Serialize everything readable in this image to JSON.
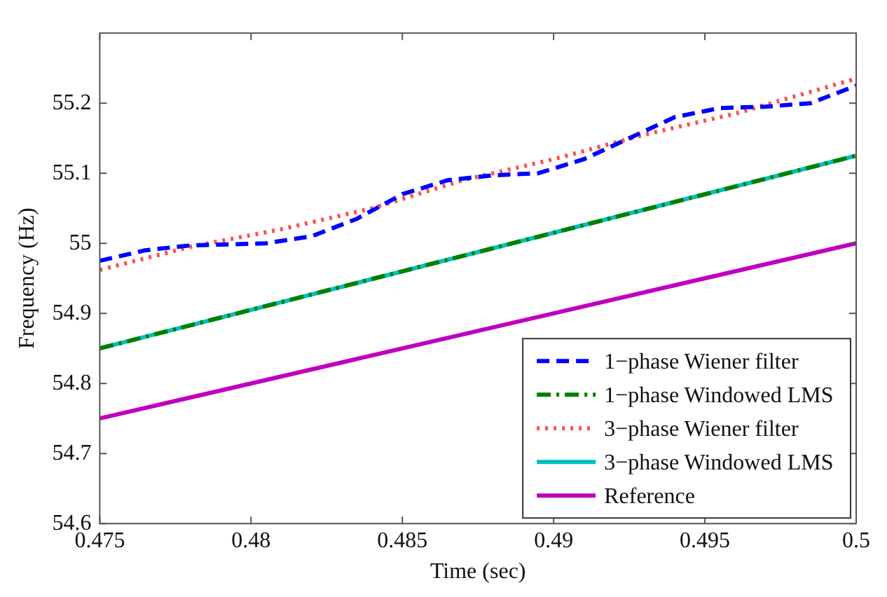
{
  "chart_data": {
    "type": "line",
    "xlabel": "Time (sec)",
    "ylabel": "Frequency (Hz)",
    "xlim": [
      0.475,
      0.5
    ],
    "xticks": [
      0.475,
      0.48,
      0.485,
      0.49,
      0.495,
      0.5
    ],
    "ylim": [
      54.6,
      55.3
    ],
    "yticks": [
      54.6,
      54.7,
      54.8,
      54.9,
      55,
      55.1,
      55.2
    ],
    "grid": false,
    "legend": "bottom right",
    "marker": "none",
    "series": [
      {
        "name": "1−phase Wiener filter",
        "color": "#0000ff",
        "line_style": "dashed",
        "x": [
          0.475,
          0.4765,
          0.478,
          0.4805,
          0.482,
          0.4835,
          0.485,
          0.4865,
          0.488,
          0.4895,
          0.491,
          0.4925,
          0.494,
          0.4955,
          0.497,
          0.4985,
          0.5
        ],
        "values": [
          54.975,
          54.99,
          54.997,
          55.0,
          55.01,
          55.035,
          55.07,
          55.09,
          55.097,
          55.1,
          55.12,
          55.15,
          55.18,
          55.193,
          55.195,
          55.2,
          55.225
        ]
      },
      {
        "name": "1−phase Windowed LMS",
        "color": "#008000",
        "line_style": "dashed",
        "x": [
          0.475,
          0.5
        ],
        "values": [
          54.85,
          55.125
        ]
      },
      {
        "name": "3−phase Wiener filter",
        "color": "#ff5050",
        "line_style": "dotted",
        "x": [
          0.475,
          0.478,
          0.481,
          0.484,
          0.487,
          0.49,
          0.493,
          0.496,
          0.5
        ],
        "values": [
          54.962,
          54.995,
          55.02,
          55.05,
          55.09,
          55.12,
          55.155,
          55.185,
          55.235
        ]
      },
      {
        "name": "3−phase Windowed LMS",
        "color": "#00bfbf",
        "line_style": "solid",
        "x": [
          0.475,
          0.5
        ],
        "values": [
          54.85,
          55.125
        ]
      },
      {
        "name": "Reference",
        "color": "#bf00bf",
        "line_style": "solid",
        "x": [
          0.475,
          0.5
        ],
        "values": [
          54.75,
          55.0
        ]
      }
    ]
  }
}
